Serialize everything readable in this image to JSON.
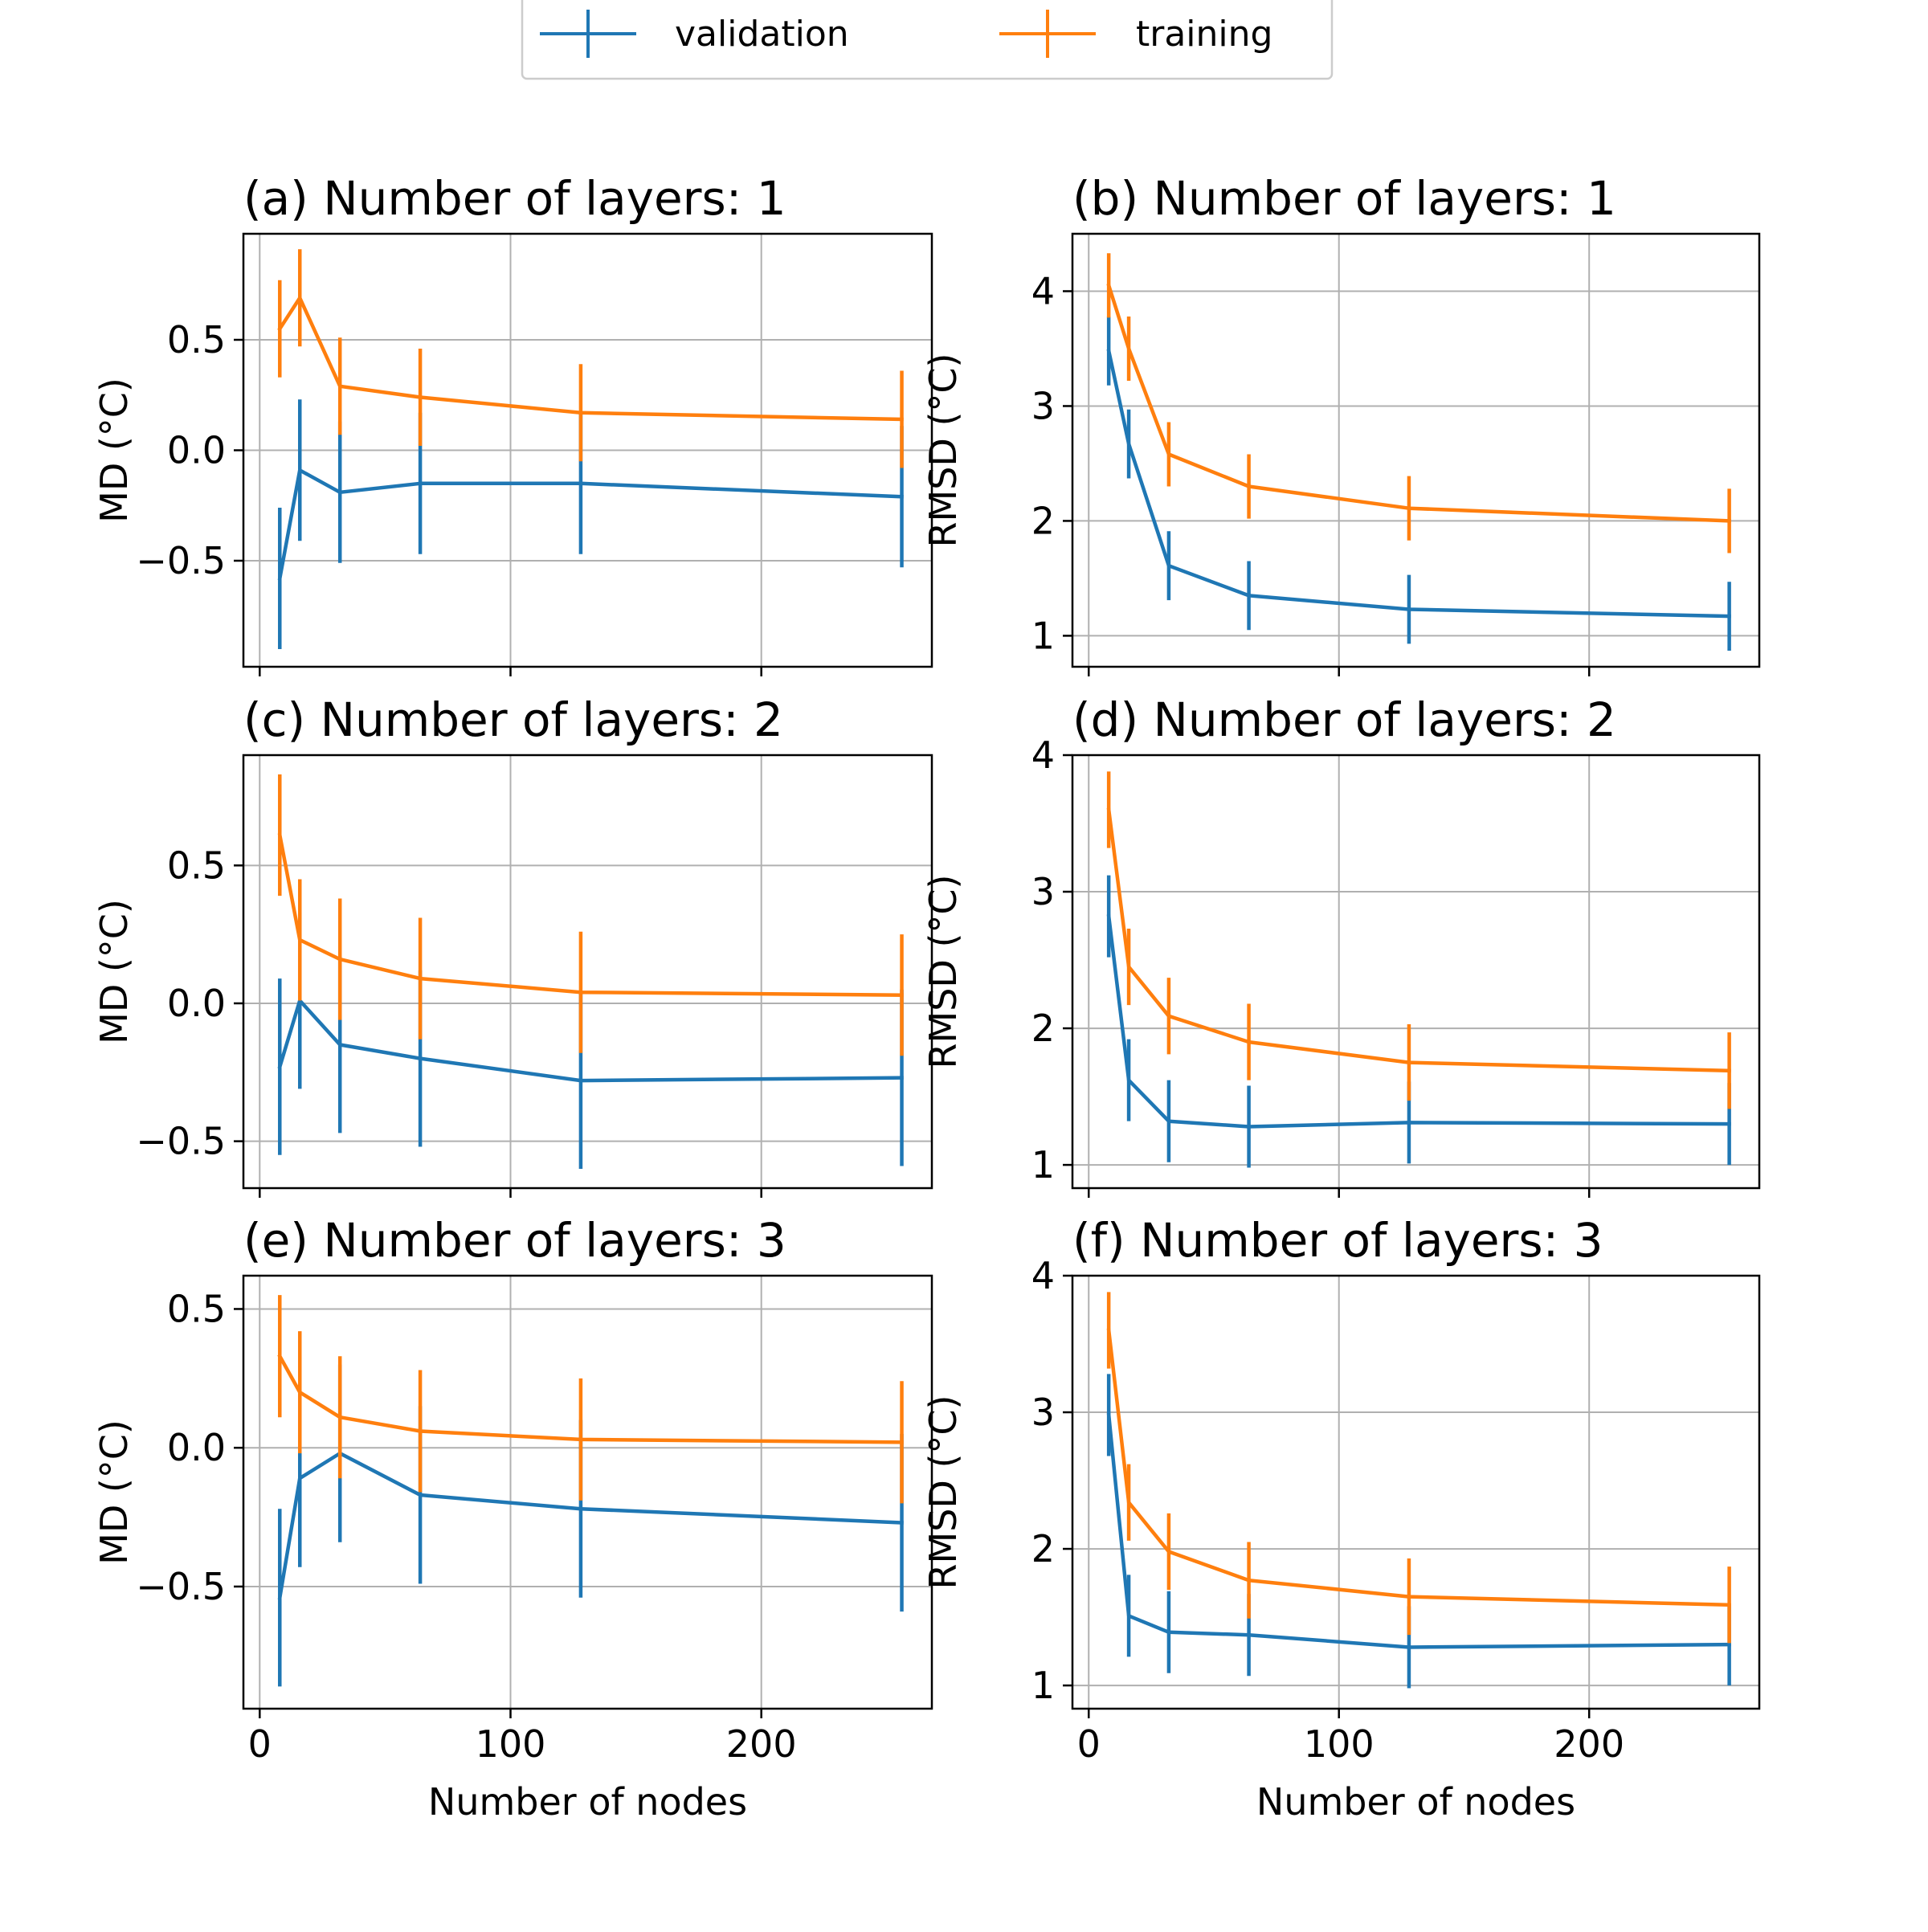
{
  "legend": {
    "placement": "top-center",
    "entries": [
      {
        "label": "validation",
        "color": "#1f77b4"
      },
      {
        "label": "training",
        "color": "#ff7f0e"
      }
    ]
  },
  "chart_data": [
    {
      "type": "line",
      "title": "(a) Number of layers: 1",
      "xlabel": "",
      "ylabel": "MD (°C)",
      "xlim": [
        -6.5,
        268
      ],
      "ylim": [
        -0.98,
        0.98
      ],
      "xticks": [
        0,
        100,
        200
      ],
      "xticklabels": [
        "",
        "",
        ""
      ],
      "yticks": [
        -0.5,
        0,
        0.5
      ],
      "yticklabels": [
        "−0.5",
        "0.0",
        "0.5"
      ],
      "grid": true,
      "x": [
        8,
        16,
        32,
        64,
        128,
        256
      ],
      "series": [
        {
          "name": "validation",
          "color": "#1f77b4",
          "values": [
            -0.58,
            -0.09,
            -0.19,
            -0.15,
            -0.15,
            -0.21
          ],
          "errors": [
            0.32,
            0.32,
            0.32,
            0.32,
            0.32,
            0.32
          ]
        },
        {
          "name": "training",
          "color": "#ff7f0e",
          "values": [
            0.55,
            0.69,
            0.29,
            0.24,
            0.17,
            0.14
          ],
          "errors": [
            0.22,
            0.22,
            0.22,
            0.22,
            0.22,
            0.22
          ]
        }
      ]
    },
    {
      "type": "line",
      "title": "(b) Number of layers: 1",
      "xlabel": "",
      "ylabel": "RMSD (°C)",
      "xlim": [
        -6.5,
        268
      ],
      "ylim": [
        0.73,
        4.5
      ],
      "xticks": [
        0,
        100,
        200
      ],
      "xticklabels": [
        "",
        "",
        ""
      ],
      "yticks": [
        1,
        2,
        3,
        4
      ],
      "yticklabels": [
        "1",
        "2",
        "3",
        "4"
      ],
      "grid": true,
      "x": [
        8,
        16,
        32,
        64,
        128,
        256
      ],
      "series": [
        {
          "name": "validation",
          "color": "#1f77b4",
          "values": [
            3.48,
            2.67,
            1.61,
            1.35,
            1.23,
            1.17
          ],
          "errors": [
            0.3,
            0.3,
            0.3,
            0.3,
            0.3,
            0.3
          ]
        },
        {
          "name": "training",
          "color": "#ff7f0e",
          "values": [
            4.05,
            3.5,
            2.58,
            2.3,
            2.11,
            2.0
          ],
          "errors": [
            0.28,
            0.28,
            0.28,
            0.28,
            0.28,
            0.28
          ]
        }
      ]
    },
    {
      "type": "line",
      "title": "(c) Number of layers: 2",
      "xlabel": "",
      "ylabel": "MD (°C)",
      "xlim": [
        -6.5,
        268
      ],
      "ylim": [
        -0.67,
        0.9
      ],
      "xticks": [
        0,
        100,
        200
      ],
      "xticklabels": [
        "",
        "",
        ""
      ],
      "yticks": [
        -0.5,
        0,
        0.5
      ],
      "yticklabels": [
        "−0.5",
        "0.0",
        "0.5"
      ],
      "grid": true,
      "x": [
        8,
        16,
        32,
        64,
        128,
        256
      ],
      "series": [
        {
          "name": "validation",
          "color": "#1f77b4",
          "values": [
            -0.23,
            0.01,
            -0.15,
            -0.2,
            -0.28,
            -0.27
          ],
          "errors": [
            0.32,
            0.32,
            0.32,
            0.32,
            0.32,
            0.32
          ]
        },
        {
          "name": "training",
          "color": "#ff7f0e",
          "values": [
            0.61,
            0.23,
            0.16,
            0.09,
            0.04,
            0.03
          ],
          "errors": [
            0.22,
            0.22,
            0.22,
            0.22,
            0.22,
            0.22
          ]
        }
      ]
    },
    {
      "type": "line",
      "title": "(d) Number of layers: 2",
      "xlabel": "",
      "ylabel": "RMSD (°C)",
      "xlim": [
        -6.5,
        268
      ],
      "ylim": [
        0.83,
        4.0
      ],
      "xticks": [
        0,
        100,
        200
      ],
      "xticklabels": [
        "",
        "",
        ""
      ],
      "yticks": [
        1,
        2,
        3,
        4
      ],
      "yticklabels": [
        "1",
        "2",
        "3",
        "4"
      ],
      "grid": true,
      "x": [
        8,
        16,
        32,
        64,
        128,
        256
      ],
      "series": [
        {
          "name": "validation",
          "color": "#1f77b4",
          "values": [
            2.82,
            1.62,
            1.32,
            1.28,
            1.31,
            1.3
          ],
          "errors": [
            0.3,
            0.3,
            0.3,
            0.3,
            0.3,
            0.3
          ]
        },
        {
          "name": "training",
          "color": "#ff7f0e",
          "values": [
            3.6,
            2.45,
            2.09,
            1.9,
            1.75,
            1.69
          ],
          "errors": [
            0.28,
            0.28,
            0.28,
            0.28,
            0.28,
            0.28
          ]
        }
      ]
    },
    {
      "type": "line",
      "title": "(e) Number of layers: 3",
      "xlabel": "Number of nodes",
      "ylabel": "MD (°C)",
      "xlim": [
        -6.5,
        268
      ],
      "ylim": [
        -0.94,
        0.62
      ],
      "xticks": [
        0,
        100,
        200
      ],
      "xticklabels": [
        "0",
        "100",
        "200"
      ],
      "yticks": [
        -0.5,
        0,
        0.5
      ],
      "yticklabels": [
        "−0.5",
        "0.0",
        "0.5"
      ],
      "grid": true,
      "x": [
        8,
        16,
        32,
        64,
        128,
        256
      ],
      "series": [
        {
          "name": "validation",
          "color": "#1f77b4",
          "values": [
            -0.54,
            -0.11,
            -0.02,
            -0.17,
            -0.22,
            -0.27
          ],
          "errors": [
            0.32,
            0.32,
            0.32,
            0.32,
            0.32,
            0.32
          ]
        },
        {
          "name": "training",
          "color": "#ff7f0e",
          "values": [
            0.33,
            0.2,
            0.11,
            0.06,
            0.03,
            0.02
          ],
          "errors": [
            0.22,
            0.22,
            0.22,
            0.22,
            0.22,
            0.22
          ]
        }
      ]
    },
    {
      "type": "line",
      "title": "(f) Number of layers: 3",
      "xlabel": "Number of nodes",
      "ylabel": "RMSD (°C)",
      "xlim": [
        -6.5,
        268
      ],
      "ylim": [
        0.83,
        4.0
      ],
      "xticks": [
        0,
        100,
        200
      ],
      "xticklabels": [
        "0",
        "100",
        "200"
      ],
      "yticks": [
        1,
        2,
        3,
        4
      ],
      "yticklabels": [
        "1",
        "2",
        "3",
        "4"
      ],
      "grid": true,
      "x": [
        8,
        16,
        32,
        64,
        128,
        256
      ],
      "series": [
        {
          "name": "validation",
          "color": "#1f77b4",
          "values": [
            2.98,
            1.51,
            1.39,
            1.37,
            1.28,
            1.3
          ],
          "errors": [
            0.3,
            0.3,
            0.3,
            0.3,
            0.3,
            0.3
          ]
        },
        {
          "name": "training",
          "color": "#ff7f0e",
          "values": [
            3.6,
            2.34,
            1.98,
            1.77,
            1.65,
            1.59
          ],
          "errors": [
            0.28,
            0.28,
            0.28,
            0.28,
            0.28,
            0.28
          ]
        }
      ]
    }
  ]
}
